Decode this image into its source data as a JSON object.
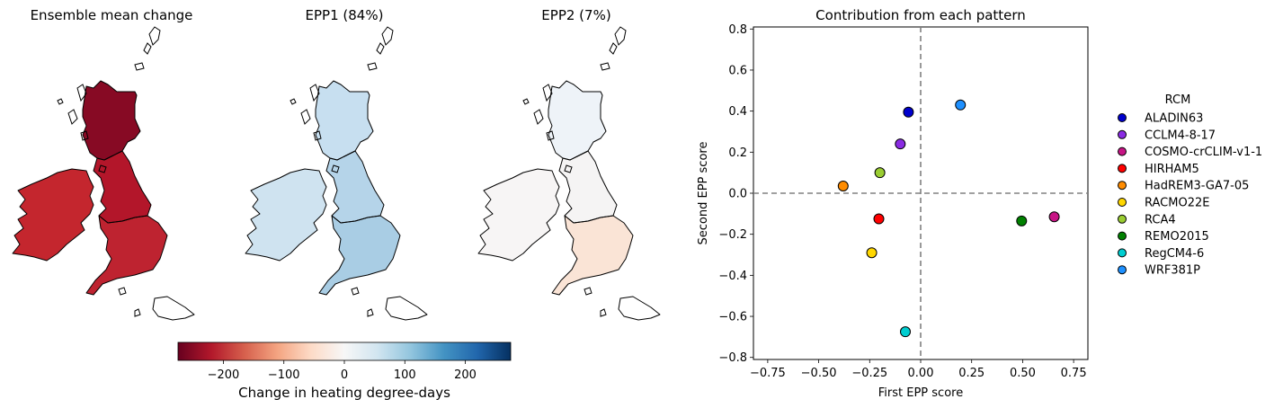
{
  "map_panels": [
    {
      "title": "Ensemble mean change",
      "fill": {
        "ireland": "#c4262e",
        "scotland": "#870a24",
        "north_england": "#b3162a",
        "south_england": "#be2330"
      }
    },
    {
      "title": "EPP1 (84%)",
      "fill": {
        "ireland": "#cfe3f0",
        "scotland": "#c7dff0",
        "north_england": "#b5d4e9",
        "south_england": "#a9cde4"
      }
    },
    {
      "title": "EPP2 (7%)",
      "fill": {
        "ireland": "#f7f5f5",
        "scotland": "#eef3f8",
        "north_england": "#f5f4f4",
        "south_england": "#fae4d6"
      }
    }
  ],
  "colorbar": {
    "label": "Change in heating degree-days",
    "range": [
      -275,
      275
    ],
    "ticks": [
      -200,
      -100,
      0,
      100,
      200
    ],
    "tick_labels": [
      "−200",
      "−100",
      "0",
      "100",
      "200"
    ],
    "colormap": "RdBu",
    "stops": [
      "#67001f",
      "#b2182b",
      "#d6604d",
      "#f4a582",
      "#fddbc7",
      "#f7f7f7",
      "#d1e5f0",
      "#92c5de",
      "#4393c3",
      "#2166ac",
      "#053061"
    ]
  },
  "chart_data": {
    "type": "scatter",
    "title": "Contribution from each pattern",
    "xlabel": "First EPP score",
    "ylabel": "Second EPP score",
    "xlim": [
      -0.82,
      0.82
    ],
    "ylim": [
      -0.81,
      0.81
    ],
    "xticks": [
      -0.75,
      -0.5,
      -0.25,
      0.0,
      0.25,
      0.5,
      0.75
    ],
    "xtick_labels": [
      "−0.75",
      "−0.50",
      "−0.25",
      "0.00",
      "0.25",
      "0.50",
      "0.75"
    ],
    "yticks": [
      -0.8,
      -0.6,
      -0.4,
      -0.2,
      0.0,
      0.2,
      0.4,
      0.6,
      0.8
    ],
    "ytick_labels": [
      "−0.8",
      "−0.6",
      "−0.4",
      "−0.2",
      "0.0",
      "0.2",
      "0.4",
      "0.6",
      "0.8"
    ],
    "reference_lines": {
      "x": 0,
      "y": 0,
      "style": "dashed",
      "color": "#808080"
    },
    "grid": false,
    "legend": {
      "title": "RCM",
      "placement": "outside-right"
    },
    "series": [
      {
        "name": "ALADIN63",
        "color": "#0000cd",
        "x": -0.06,
        "y": 0.395
      },
      {
        "name": "CCLM4-8-17",
        "color": "#8a2be2",
        "x": -0.1,
        "y": 0.24
      },
      {
        "name": "COSMO-crCLIM-v1-1",
        "color": "#c71585",
        "x": 0.655,
        "y": -0.115
      },
      {
        "name": "HIRHAM5",
        "color": "#ff0000",
        "x": -0.205,
        "y": -0.125
      },
      {
        "name": "HadREM3-GA7-05",
        "color": "#ff8c00",
        "x": -0.38,
        "y": 0.035
      },
      {
        "name": "RACMO22E",
        "color": "#ffd700",
        "x": -0.24,
        "y": -0.29
      },
      {
        "name": "RCA4",
        "color": "#9acd32",
        "x": -0.2,
        "y": 0.1
      },
      {
        "name": "REMO2015",
        "color": "#008000",
        "x": 0.495,
        "y": -0.135
      },
      {
        "name": "RegCM4-6",
        "color": "#00ced1",
        "x": -0.075,
        "y": -0.675
      },
      {
        "name": "WRF381P",
        "color": "#1e90ff",
        "x": 0.195,
        "y": 0.43
      }
    ]
  }
}
